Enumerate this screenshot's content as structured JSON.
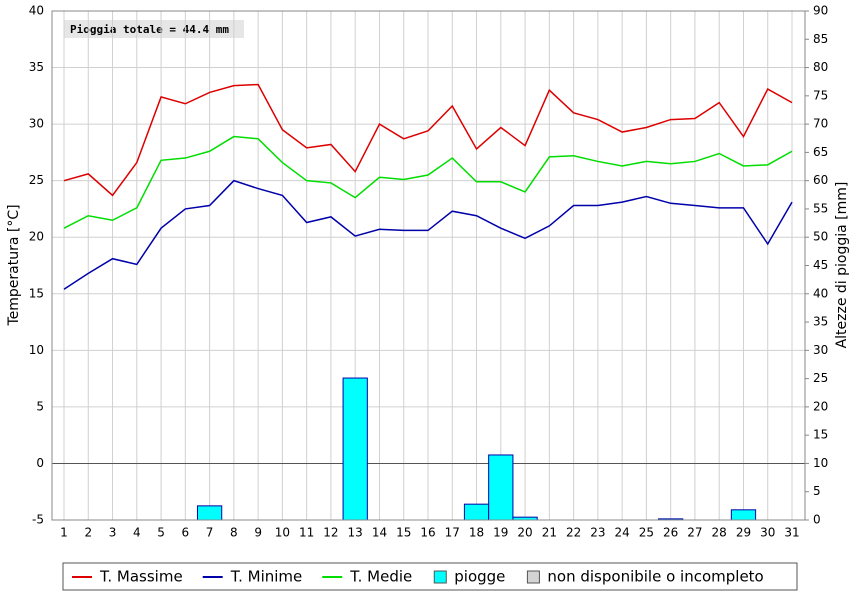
{
  "chart_data": {
    "type": "combo",
    "annotation": "Pioggia totale = 44.4 mm",
    "y_label": "Temperatura [°C]",
    "y2_label": "Altezze di pioggia [mm]",
    "categories": [
      1,
      2,
      3,
      4,
      5,
      6,
      7,
      8,
      9,
      10,
      11,
      12,
      13,
      14,
      15,
      16,
      17,
      18,
      19,
      20,
      21,
      22,
      23,
      24,
      25,
      26,
      27,
      28,
      29,
      30,
      31
    ],
    "ylim": [
      -5,
      40
    ],
    "yticks": [
      -5,
      0,
      5,
      10,
      15,
      20,
      25,
      30,
      35,
      40
    ],
    "y2lim": [
      0,
      90
    ],
    "y2ticks": [
      0,
      5,
      10,
      15,
      20,
      25,
      30,
      35,
      40,
      45,
      50,
      55,
      60,
      65,
      70,
      75,
      80,
      85,
      90
    ],
    "grid": true,
    "series": [
      {
        "name": "T. Massime",
        "type": "line",
        "color": "#dd0000",
        "values": [
          25.0,
          25.6,
          23.7,
          26.6,
          32.4,
          31.8,
          32.8,
          33.4,
          33.5,
          29.5,
          27.9,
          28.2,
          25.8,
          30.0,
          28.7,
          29.4,
          31.6,
          27.8,
          29.7,
          28.1,
          33.0,
          31.0,
          30.4,
          29.3,
          29.7,
          30.4,
          30.5,
          31.9,
          28.9,
          33.1,
          31.9
        ]
      },
      {
        "name": "T. Minime",
        "type": "line",
        "color": "#0000aa",
        "values": [
          15.4,
          16.8,
          18.1,
          17.6,
          20.8,
          22.5,
          22.8,
          25.0,
          24.3,
          23.7,
          21.3,
          21.8,
          20.1,
          20.7,
          20.6,
          20.6,
          22.3,
          21.9,
          20.8,
          19.9,
          21.0,
          22.8,
          22.8,
          23.1,
          23.6,
          23.0,
          22.8,
          22.6,
          22.6,
          19.4,
          23.1
        ]
      },
      {
        "name": "T. Medie",
        "type": "line",
        "color": "#00dd00",
        "values": [
          20.8,
          21.9,
          21.5,
          22.6,
          26.8,
          27.0,
          27.6,
          28.9,
          28.7,
          26.6,
          25.0,
          24.8,
          23.5,
          25.3,
          25.1,
          25.5,
          27.0,
          24.9,
          24.9,
          24.0,
          27.1,
          27.2,
          26.7,
          26.3,
          26.7,
          26.5,
          26.7,
          27.4,
          26.3,
          26.4,
          27.6
        ]
      },
      {
        "name": "piogge",
        "type": "bar",
        "axis": "y2",
        "color": "#00ffff",
        "values": [
          0,
          0,
          0,
          0,
          0,
          0,
          2.5,
          0,
          0,
          0,
          0,
          0,
          25.1,
          0,
          0,
          0,
          0,
          2.8,
          11.5,
          0.5,
          0,
          0,
          0,
          0,
          0,
          0.2,
          0,
          0,
          1.8,
          0,
          0
        ]
      }
    ],
    "legend_extra": {
      "name": "non disponibile o incompleto",
      "color": "#d4d4d4"
    }
  }
}
